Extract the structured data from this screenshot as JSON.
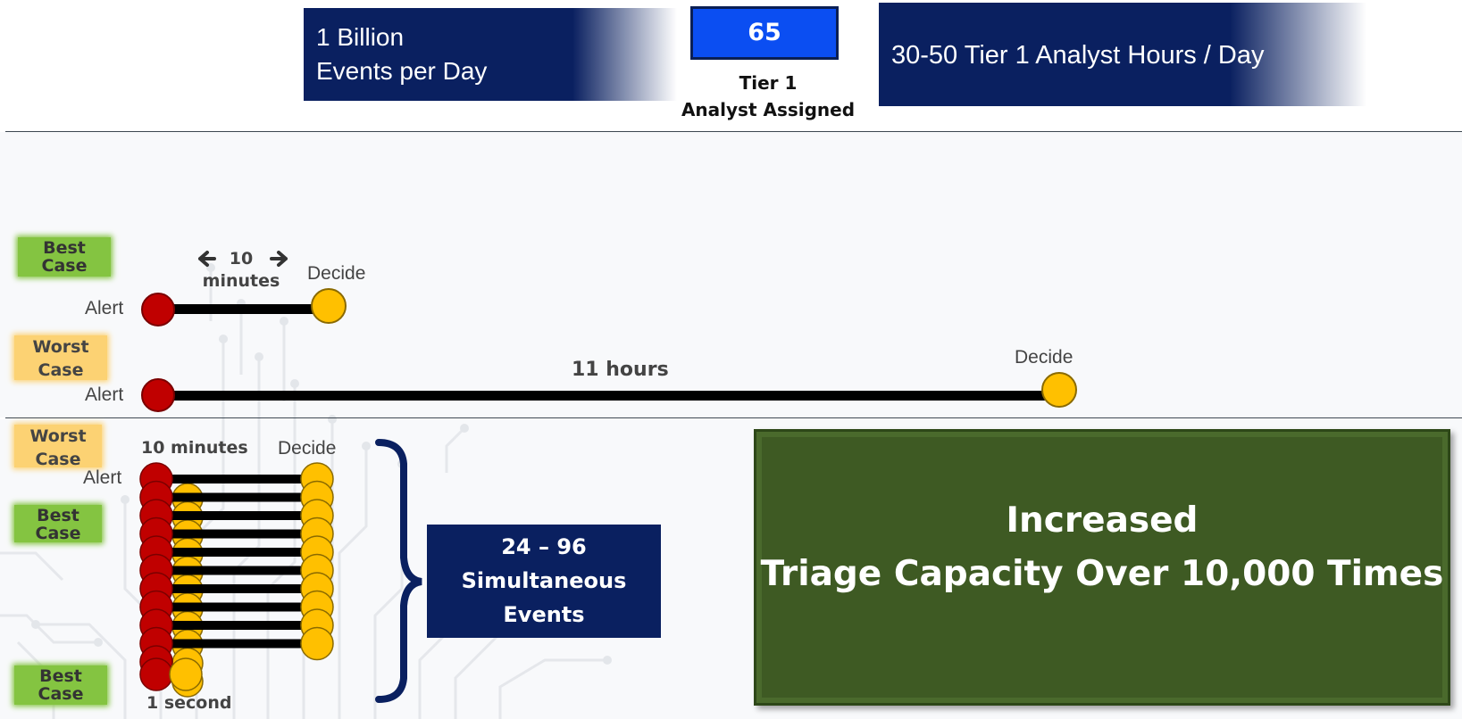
{
  "header": {
    "events_line1": "1 Billion",
    "events_line2": "Events per Day",
    "tier_count": "65",
    "tier_caption_line1": "Tier 1",
    "tier_caption_line2": "Analyst Assigned",
    "hours": "30-50 Tier 1 Analyst Hours / Day"
  },
  "timeline": {
    "best_case_label": "Best Case",
    "worst_case_label_line1": "Worst",
    "worst_case_label_line2": "Case",
    "best_duration_line1": "10",
    "best_duration_line2": "minutes",
    "worst_duration": "11 hours",
    "alert_label": "Alert",
    "decide_label": "Decide"
  },
  "parallel": {
    "worst_case_label_line1": "Worst",
    "worst_case_label_line2": "Case",
    "best_case_label": "Best Case",
    "best_case_label_bottom": "Best Case",
    "duration_top": "10 minutes",
    "duration_bottom": "1 second",
    "alert_label": "Alert",
    "decide_label": "Decide",
    "simultaneous_line1": "24 – 96",
    "simultaneous_line2": "Simultaneous",
    "simultaneous_line3": "Events"
  },
  "result": {
    "line1": "Increased",
    "line2": "Triage Capacity Over 10,000 Times"
  },
  "colors": {
    "navy": "#0a2060",
    "tier_blue": "#0b4ef2",
    "alert_red": "#c00000",
    "decide_yellow": "#ffc000",
    "best_green": "#84c441",
    "worst_yellow": "#fcd273",
    "result_green": "#3e5a23"
  }
}
